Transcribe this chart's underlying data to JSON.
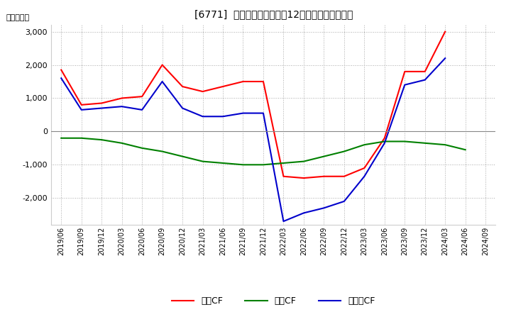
{
  "title": "[6771]  キャッシュフローの12か月移動合計の推移",
  "ylabel": "（百万円）",
  "x_labels": [
    "2019/06",
    "2019/09",
    "2019/12",
    "2020/03",
    "2020/06",
    "2020/09",
    "2020/12",
    "2021/03",
    "2021/06",
    "2021/09",
    "2021/12",
    "2022/03",
    "2022/06",
    "2022/09",
    "2022/12",
    "2023/03",
    "2023/06",
    "2023/09",
    "2023/12",
    "2024/03",
    "2024/06",
    "2024/09"
  ],
  "operating_cf": [
    1850,
    800,
    850,
    1000,
    1050,
    2000,
    1350,
    1200,
    1350,
    1500,
    1500,
    -1350,
    -1400,
    -1350,
    -1350,
    -1100,
    -200,
    1800,
    1800,
    3000,
    null,
    null
  ],
  "investing_cf": [
    -200,
    -200,
    -250,
    -350,
    -500,
    -600,
    -750,
    -900,
    -950,
    -1000,
    -1000,
    -950,
    -900,
    -750,
    -600,
    -400,
    -300,
    -300,
    -350,
    -400,
    -550,
    null
  ],
  "free_cf": [
    1600,
    650,
    700,
    750,
    650,
    1500,
    700,
    450,
    450,
    550,
    550,
    -2700,
    -2450,
    -2300,
    -2100,
    -1350,
    -350,
    1400,
    1550,
    2200,
    null,
    null
  ],
  "ylim": [
    -2800,
    3200
  ],
  "yticks": [
    -2000,
    -1000,
    0,
    1000,
    2000,
    3000
  ],
  "operating_color": "#ff0000",
  "investing_color": "#008000",
  "free_color": "#0000cc",
  "background_color": "#ffffff",
  "grid_color": "#aaaaaa",
  "zero_line_color": "#888888",
  "title_fontsize": 11,
  "legend_labels": [
    "営業CF",
    "投資CF",
    "フリーCF"
  ]
}
